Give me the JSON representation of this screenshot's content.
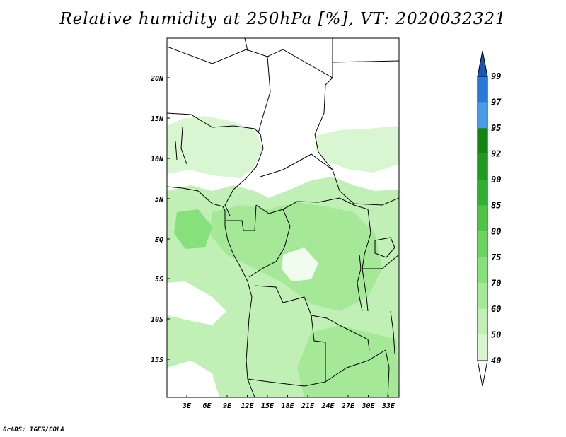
{
  "title": "Relative humidity at 250hPa [%], VT: 2020032321",
  "footer": "GrADS: IGES/COLA",
  "map": {
    "lat_labels": [
      "20N",
      "15N",
      "10N",
      "5N",
      "EQ",
      "5S",
      "10S",
      "15S"
    ],
    "lon_labels": [
      "3E",
      "6E",
      "9E",
      "12E",
      "15E",
      "18E",
      "21E",
      "24E",
      "27E",
      "30E",
      "33E"
    ]
  },
  "colorbar": {
    "levels": [
      "40",
      "50",
      "60",
      "70",
      "75",
      "80",
      "85",
      "90",
      "92",
      "95",
      "97",
      "99"
    ],
    "colors": [
      "#f0fcee",
      "#d8f6d2",
      "#c0f0b6",
      "#a4e898",
      "#88e07c",
      "#6cd460",
      "#4cc444",
      "#30b030",
      "#1e9a1e",
      "#128412",
      "#4a9ae8",
      "#2a78d8",
      "#1c56b4"
    ]
  },
  "legend_labels": {
    "colorbar": "colorbar"
  }
}
